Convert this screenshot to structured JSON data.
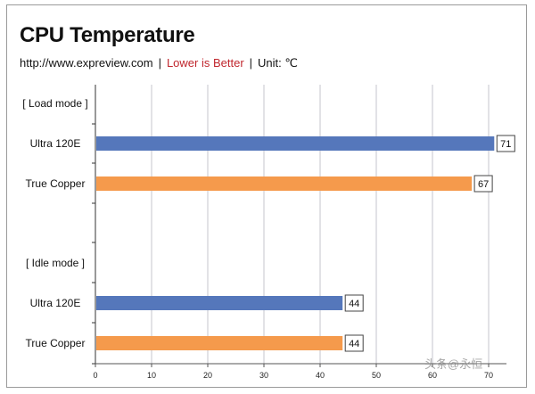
{
  "header": {
    "title": "CPU Temperature",
    "url": "http://www.expreview.com",
    "note": "Lower is Better",
    "unit": "Unit: ℃",
    "separator": "|"
  },
  "watermark": "头条@永恒",
  "colors": {
    "series_blue": "#5577bb",
    "series_orange": "#f59a4c",
    "note_red": "#c0262d",
    "grid": "#c4c4cc"
  },
  "chart_data": {
    "type": "bar",
    "orientation": "horizontal",
    "title": "CPU Temperature",
    "xlim": [
      0,
      72
    ],
    "x_ticks": [
      0,
      10,
      20,
      30,
      40,
      50,
      60,
      70
    ],
    "grid": true,
    "groups": [
      {
        "name": "[ Load mode ]",
        "bars": [
          {
            "label": "Ultra 120E",
            "value": 71,
            "color": "#5577bb"
          },
          {
            "label": "True Copper",
            "value": 67,
            "color": "#f59a4c"
          }
        ]
      },
      {
        "name": "[ Idle mode ]",
        "bars": [
          {
            "label": "Ultra 120E",
            "value": 44,
            "color": "#5577bb"
          },
          {
            "label": "True Copper",
            "value": 44,
            "color": "#f59a4c"
          }
        ]
      }
    ]
  }
}
